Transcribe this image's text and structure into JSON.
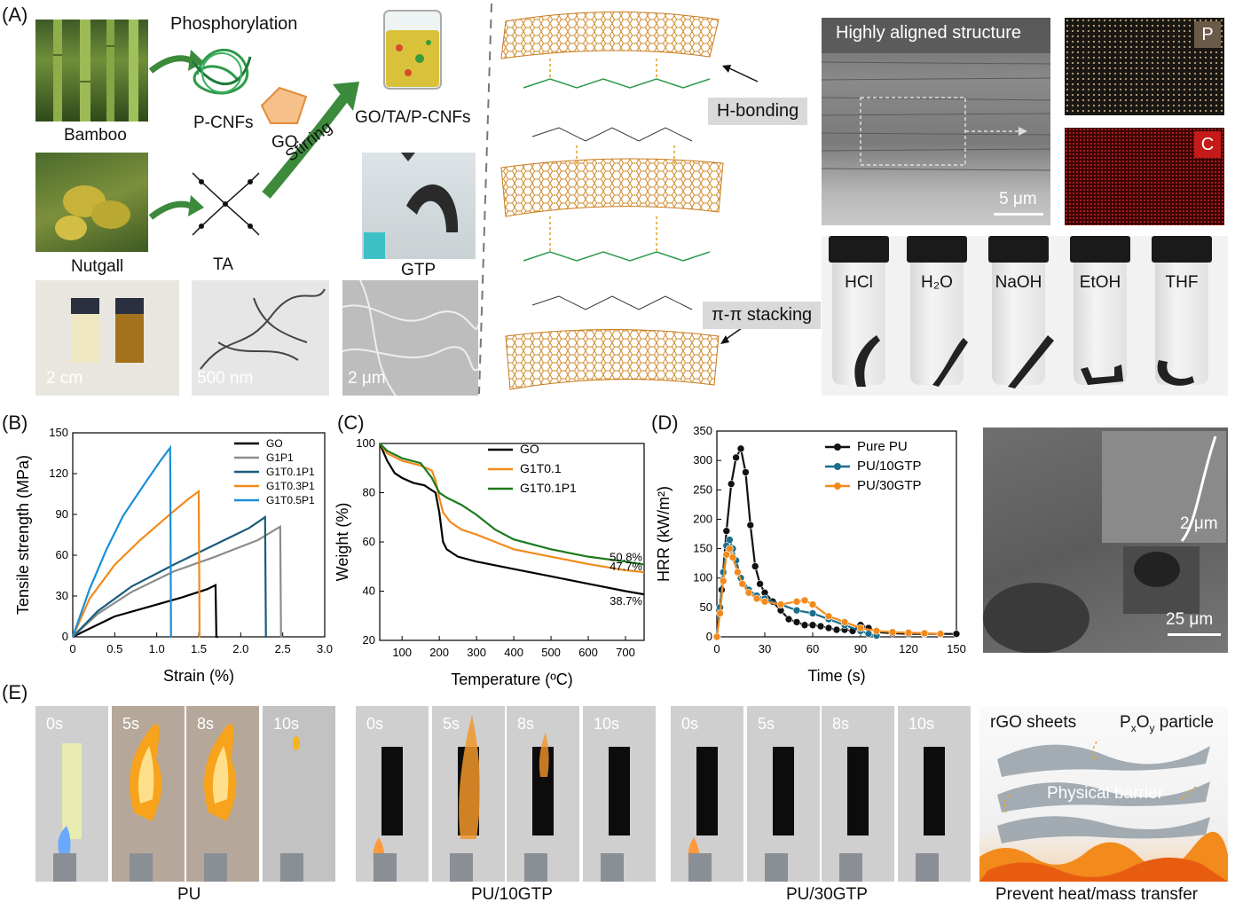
{
  "panel_labels": {
    "a": "(A)",
    "b": "(B)",
    "c": "(C)",
    "d": "(D)",
    "e": "(E)"
  },
  "panel_a": {
    "phosphorylation": "Phosphorylation",
    "bamboo": "Bamboo",
    "pcnfs": "P-CNFs",
    "go": "GO",
    "stirring": "Stirring",
    "go_ta_pcnfs": "GO/TA/P-CNFs",
    "nutgall": "Nutgall",
    "ta": "TA",
    "gtp": "GTP",
    "scale_2cm": "2 cm",
    "scale_500nm": "500 nm",
    "scale_2um": "2 μm",
    "h_bonding": "H-bonding",
    "pi_stacking": "π-π stacking",
    "aligned": "Highly aligned structure",
    "scale_5um": "5 μm",
    "map_p": "P",
    "map_c": "C",
    "vials": [
      "HCl",
      "H₂O",
      "NaOH",
      "EtOH",
      "THF"
    ]
  },
  "chart_data": [
    {
      "id": "B",
      "type": "line",
      "xlabel": "Strain (%)",
      "ylabel": "Tensile strength (MPa)",
      "xlim": [
        0,
        3.0
      ],
      "ylim": [
        0,
        150
      ],
      "xticks": [
        "0",
        "0.5",
        "1.0",
        "1.5",
        "2.0",
        "2.5",
        "3.0"
      ],
      "yticks": [
        "0",
        "30",
        "60",
        "90",
        "120",
        "150"
      ],
      "legend_position": "top-right",
      "series": [
        {
          "name": "GO",
          "color": "#000000",
          "x": [
            0,
            0.2,
            0.5,
            0.9,
            1.3,
            1.6,
            1.7,
            1.71,
            1.73
          ],
          "y": [
            0,
            6,
            15,
            22,
            29,
            35,
            38,
            0,
            0
          ]
        },
        {
          "name": "G1P1",
          "color": "#8c8c8c",
          "x": [
            0,
            0.3,
            0.7,
            1.2,
            1.7,
            2.2,
            2.47,
            2.48,
            2.5
          ],
          "y": [
            0,
            17,
            33,
            48,
            59,
            71,
            81,
            0,
            0
          ]
        },
        {
          "name": "G1T0.1P1",
          "color": "#1a5d7a",
          "x": [
            0,
            0.3,
            0.7,
            1.2,
            1.7,
            2.1,
            2.29,
            2.3,
            2.31
          ],
          "y": [
            0,
            19,
            37,
            53,
            68,
            80,
            88,
            0,
            0
          ]
        },
        {
          "name": "G1T0.3P1",
          "color": "#f28a1c",
          "x": [
            0,
            0.2,
            0.5,
            0.8,
            1.1,
            1.35,
            1.5,
            1.51,
            1.52
          ],
          "y": [
            0,
            28,
            53,
            71,
            87,
            100,
            107,
            0,
            0
          ]
        },
        {
          "name": "G1T0.5P1",
          "color": "#1a8fd8",
          "x": [
            0,
            0.2,
            0.4,
            0.6,
            0.85,
            1.05,
            1.16,
            1.17,
            1.18
          ],
          "y": [
            0,
            35,
            64,
            89,
            112,
            130,
            139,
            0,
            0
          ]
        }
      ]
    },
    {
      "id": "C",
      "type": "line",
      "xlabel": "Temperature (ºC)",
      "ylabel": "Weight (%)",
      "xlim": [
        40,
        750
      ],
      "ylim": [
        20,
        100
      ],
      "xticks": [
        "100",
        "200",
        "300",
        "400",
        "500",
        "600",
        "700"
      ],
      "yticks": [
        "20",
        "40",
        "60",
        "80",
        "100"
      ],
      "legend_position": "top-right",
      "annotations": [
        "50.8%",
        "47.7%",
        "38.7%"
      ],
      "series": [
        {
          "name": "GO",
          "color": "#000000",
          "x": [
            40,
            60,
            80,
            100,
            130,
            160,
            190,
            200,
            210,
            220,
            250,
            300,
            400,
            500,
            600,
            700,
            750
          ],
          "y": [
            100,
            93,
            88,
            86,
            84,
            83,
            80,
            72,
            60,
            57,
            54,
            52,
            49,
            46,
            43,
            40,
            38.7
          ]
        },
        {
          "name": "G1T0.1",
          "color": "#f28a1c",
          "x": [
            40,
            60,
            100,
            150,
            180,
            190,
            200,
            210,
            230,
            260,
            300,
            350,
            400,
            500,
            600,
            700,
            750
          ],
          "y": [
            100,
            96,
            93,
            91,
            89,
            85,
            78,
            72,
            68,
            65,
            63,
            60,
            57,
            54,
            51,
            48.5,
            47.7
          ]
        },
        {
          "name": "G1T0.1P1",
          "color": "#1b7a1b",
          "x": [
            40,
            60,
            100,
            150,
            180,
            200,
            220,
            260,
            300,
            350,
            400,
            500,
            600,
            700,
            750
          ],
          "y": [
            100,
            97,
            94,
            92,
            86,
            80,
            78,
            75,
            71,
            65,
            61,
            57,
            54,
            52,
            50.8
          ]
        }
      ]
    },
    {
      "id": "D",
      "type": "line",
      "xlabel": "Time (s)",
      "ylabel": "HRR (kW/m²)",
      "xlim": [
        0,
        150
      ],
      "ylim": [
        0,
        350
      ],
      "xticks": [
        "0",
        "30",
        "60",
        "90",
        "120",
        "150"
      ],
      "yticks": [
        "0",
        "50",
        "100",
        "150",
        "200",
        "250",
        "300",
        "350"
      ],
      "legend_position": "top-right",
      "series": [
        {
          "name": "Pure PU",
          "color": "#111111",
          "x": [
            0,
            3,
            6,
            9,
            12,
            15,
            18,
            21,
            24,
            27,
            30,
            35,
            40,
            45,
            50,
            55,
            60,
            65,
            70,
            75,
            80,
            85,
            90,
            95,
            100,
            110,
            120,
            130,
            140,
            150
          ],
          "y": [
            0,
            80,
            180,
            260,
            305,
            320,
            280,
            190,
            120,
            90,
            75,
            60,
            45,
            30,
            25,
            20,
            20,
            18,
            15,
            12,
            12,
            10,
            20,
            15,
            8,
            6,
            5,
            5,
            5,
            5
          ]
        },
        {
          "name": "PU/10GTP",
          "color": "#1a6e8a",
          "x": [
            0,
            2,
            4,
            6,
            8,
            10,
            12,
            15,
            20,
            25,
            30,
            40,
            50,
            60,
            70,
            80,
            90,
            95,
            100
          ],
          "y": [
            0,
            50,
            110,
            155,
            165,
            150,
            130,
            100,
            80,
            70,
            65,
            55,
            45,
            40,
            30,
            20,
            10,
            5,
            2
          ]
        },
        {
          "name": "PU/30GTP",
          "color": "#f28a1c",
          "x": [
            0,
            2,
            4,
            6,
            8,
            10,
            13,
            16,
            20,
            25,
            30,
            40,
            50,
            55,
            60,
            70,
            80,
            90,
            100,
            110,
            120,
            130,
            140
          ],
          "y": [
            0,
            40,
            95,
            140,
            150,
            135,
            110,
            90,
            75,
            65,
            60,
            55,
            60,
            62,
            55,
            35,
            25,
            15,
            10,
            8,
            7,
            6,
            5
          ]
        }
      ]
    }
  ],
  "panel_d_sem": {
    "scale_2um": "2 μm",
    "scale_25um": "25 μm"
  },
  "panel_e": {
    "groups": [
      {
        "label": "PU",
        "times": [
          "0s",
          "5s",
          "8s",
          "10s"
        ]
      },
      {
        "label": "PU/10GTP",
        "times": [
          "0s",
          "5s",
          "8s",
          "10s"
        ]
      },
      {
        "label": "PU/30GTP",
        "times": [
          "0s",
          "5s",
          "8s",
          "10s"
        ]
      }
    ],
    "schematic": {
      "rgo": "rGO sheets",
      "pxoy_p": "P",
      "pxoy_x": "x",
      "pxoy_o": "O",
      "pxoy_y": "y",
      "pxoy_particle": " particle",
      "barrier": "Physical barrier",
      "caption": "Prevent heat/mass transfer"
    }
  }
}
